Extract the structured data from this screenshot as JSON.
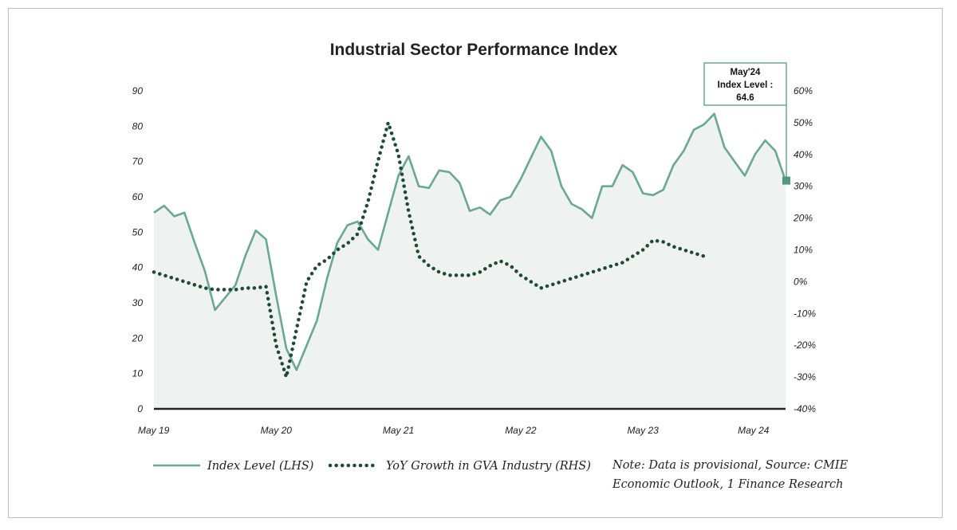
{
  "chart_data": {
    "type": "line",
    "title": "Industrial Sector Performance Index",
    "x_tick_labels": [
      "May 19",
      "May 20",
      "May 21",
      "May 22",
      "May 23",
      "May 24"
    ],
    "y_left": {
      "ticks": [
        "0",
        "10",
        "20",
        "30",
        "40",
        "50",
        "60",
        "70",
        "80",
        "90"
      ],
      "ylim": [
        0,
        90
      ]
    },
    "y_right": {
      "ticks": [
        "-40%",
        "-30%",
        "-20%",
        "-10%",
        "0%",
        "10%",
        "20%",
        "30%",
        "40%",
        "50%",
        "60%"
      ],
      "ylim": [
        -40,
        60
      ]
    },
    "grid": false,
    "legend_placement": "bottom",
    "series": [
      {
        "name": "Index Level (LHS)",
        "axis": "left",
        "style": "solid-area",
        "color": "#6aa88f",
        "fill": "#eef3f1",
        "values": [
          55.5,
          57.5,
          54.5,
          55.5,
          47,
          39,
          28,
          31.5,
          35,
          43.5,
          50.5,
          48,
          32,
          17,
          11,
          18,
          25,
          37,
          47,
          52,
          53,
          48,
          45,
          55.5,
          66,
          71.5,
          63,
          62.5,
          67.5,
          67,
          64,
          56,
          57,
          55,
          59,
          60,
          65,
          71,
          77,
          73,
          63,
          58,
          56.5,
          54,
          63,
          63,
          69,
          67,
          61,
          60.5,
          62,
          69,
          73,
          79,
          80.5,
          83.5,
          74,
          70,
          66,
          72,
          76,
          73,
          64.6
        ]
      },
      {
        "name": "YoY Growth in GVA Industry (RHS)",
        "axis": "right",
        "style": "dotted",
        "color": "#1f4a36",
        "values": [
          3,
          2,
          1,
          0,
          -1,
          -2,
          -2.5,
          -2.5,
          -2.5,
          -2,
          -2,
          -1.5,
          -20,
          -30,
          -15,
          0,
          5,
          7,
          10,
          12,
          15,
          25,
          38,
          50,
          40,
          22,
          8,
          5,
          3,
          2,
          2,
          2,
          3,
          5,
          6.5,
          5,
          2,
          0,
          -2,
          -1,
          0,
          1,
          2,
          3,
          4,
          5,
          6,
          8,
          10,
          13,
          12.5,
          11,
          10,
          9,
          8
        ]
      }
    ],
    "annotations": [
      {
        "lines": [
          "May'24",
          "Index Level :",
          "64.6"
        ],
        "x_index": 62,
        "value": 64.6
      }
    ],
    "note": "Note: Data is provisional, Source: CMIE Economic Outlook, 1 Finance Research"
  }
}
